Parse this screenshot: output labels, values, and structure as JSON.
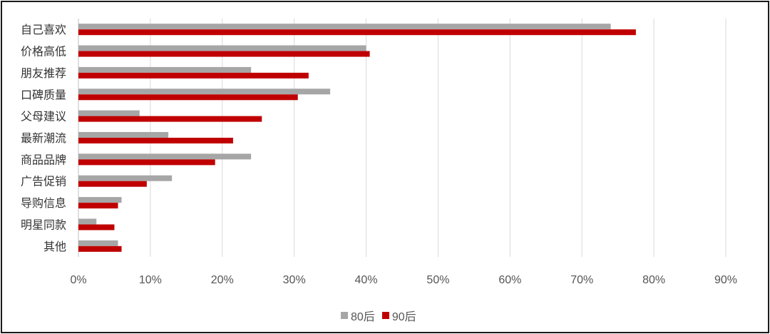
{
  "chart_data": {
    "type": "bar",
    "orientation": "horizontal",
    "categories": [
      "自己喜欢",
      "价格高低",
      "朋友推荐",
      "口碑质量",
      "父母建议",
      "最新潮流",
      "商品品牌",
      "广告促销",
      "导购信息",
      "明星同款",
      "其他"
    ],
    "series": [
      {
        "name": "80后",
        "color": "#a6a6a6",
        "values": [
          74,
          40,
          24,
          35,
          8.5,
          12.5,
          24,
          13,
          6,
          2.5,
          5.5
        ]
      },
      {
        "name": "90后",
        "color": "#c00000",
        "values": [
          77.5,
          40.5,
          32,
          30.5,
          25.5,
          21.5,
          19,
          9.5,
          5.5,
          5,
          6
        ]
      }
    ],
    "xticks": [
      "0%",
      "10%",
      "20%",
      "30%",
      "40%",
      "50%",
      "60%",
      "70%",
      "80%",
      "90%"
    ],
    "xlim": [
      0,
      90
    ],
    "grid": true,
    "legend_position": "bottom"
  }
}
